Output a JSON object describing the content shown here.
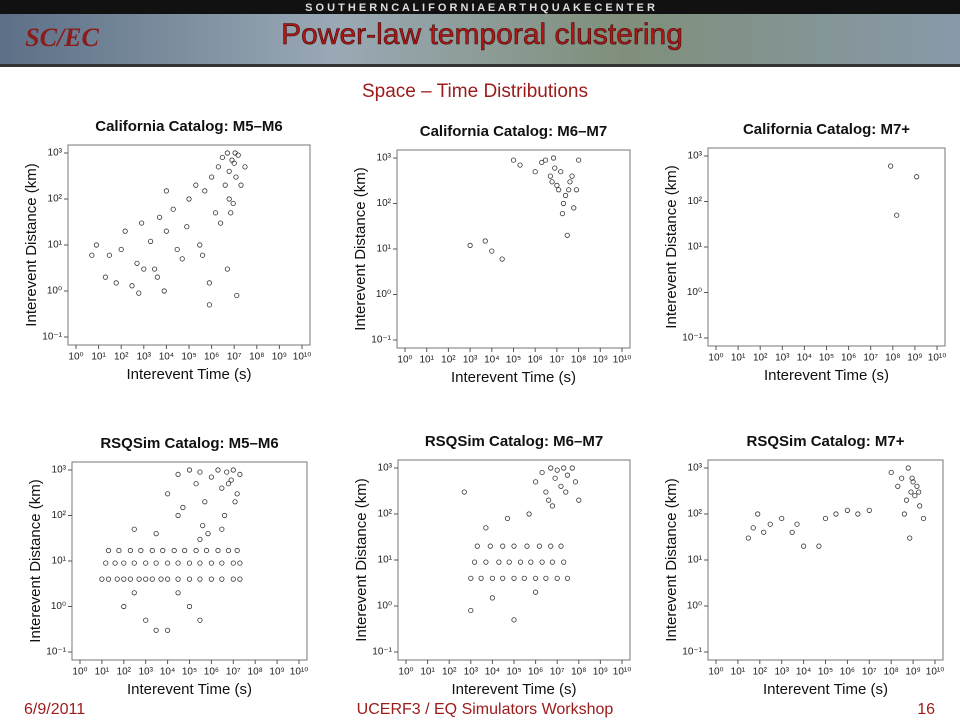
{
  "slide": {
    "banner": "S O U T H E R N   C A L I F O R N I A   E A R T H Q U A K E   C E N T E R",
    "logo": "SC/EC",
    "title": "Power-law temporal clustering",
    "subtitle": "Space – Time  Distributions",
    "footer_date": "6/9/2011",
    "footer_event": "UCERF3 / EQ Simulators Workshop",
    "page_number": "16"
  },
  "chart_data": [
    {
      "type": "scatter",
      "title": "California Catalog: M5–M6",
      "xlabel": "Interevent Time (s)",
      "ylabel": "Interevent Distance (km)",
      "xlog": true,
      "ylog": true,
      "color": "#333333",
      "xlim": [
        1,
        10000000000.0
      ],
      "ylim": [
        0.1,
        1000
      ],
      "xticks": [
        {
          "value": 1,
          "label": "10⁰"
        },
        {
          "value": 10,
          "label": "10¹"
        },
        {
          "value": 100,
          "label": "10²"
        },
        {
          "value": 1000,
          "label": "10³"
        },
        {
          "value": 10000.0,
          "label": "10⁴"
        },
        {
          "value": 100000.0,
          "label": "10⁵"
        },
        {
          "value": 1000000.0,
          "label": "10⁶"
        },
        {
          "value": 10000000.0,
          "label": "10⁷"
        },
        {
          "value": 100000000.0,
          "label": "10⁸"
        },
        {
          "value": 1000000000.0,
          "label": "10⁹"
        },
        {
          "value": 10000000000.0,
          "label": "10¹⁰"
        }
      ],
      "yticks": [
        {
          "value": 0.1,
          "label": "10⁻¹"
        },
        {
          "value": 1,
          "label": "10⁰"
        },
        {
          "value": 10,
          "label": "10¹"
        },
        {
          "value": 100,
          "label": "10²"
        },
        {
          "value": 1000,
          "label": "10³"
        }
      ],
      "x": [
        5,
        8,
        20,
        30,
        60,
        100,
        150,
        300,
        500,
        800,
        1000,
        2000,
        3000,
        5000,
        8000,
        10000.0,
        20000.0,
        30000.0,
        50000.0,
        80000.0,
        100000.0,
        200000.0,
        300000.0,
        500000.0,
        800000.0,
        1000000.0,
        1500000.0,
        2000000.0,
        3000000.0,
        4000000.0,
        5000000.0,
        6000000.0,
        8000000.0,
        10000000.0,
        12000000.0,
        15000000.0,
        20000000.0,
        30000000.0,
        5000000.0,
        7000000.0,
        9000000.0,
        11000000.0,
        2500000.0,
        400000.0,
        10000.0,
        600,
        4000,
        6000000.0,
        13000000.0,
        800000.0
      ],
      "values": [
        6,
        10,
        2,
        6,
        1.5,
        8,
        20,
        1.3,
        4,
        30,
        3,
        12,
        3,
        40,
        1,
        20,
        60,
        8,
        5,
        25,
        100,
        200,
        10,
        150,
        0.5,
        300,
        50,
        500,
        800,
        200,
        1000,
        400,
        700,
        600,
        300,
        900,
        200,
        500,
        3,
        50,
        80,
        1000,
        30,
        6,
        150,
        0.9,
        2,
        100,
        0.8,
        1.5
      ]
    },
    {
      "type": "scatter",
      "title": "California Catalog: M6–M7",
      "xlabel": "Interevent Time (s)",
      "ylabel": "Interevent Distance (km)",
      "xlog": true,
      "ylog": true,
      "color": "#333333",
      "xlim": [
        1,
        10000000000.0
      ],
      "ylim": [
        0.1,
        1000
      ],
      "xticks": [
        {
          "value": 1,
          "label": "10⁰"
        },
        {
          "value": 10,
          "label": "10¹"
        },
        {
          "value": 100,
          "label": "10²"
        },
        {
          "value": 1000,
          "label": "10³"
        },
        {
          "value": 10000.0,
          "label": "10⁴"
        },
        {
          "value": 100000.0,
          "label": "10⁵"
        },
        {
          "value": 1000000.0,
          "label": "10⁶"
        },
        {
          "value": 10000000.0,
          "label": "10⁷"
        },
        {
          "value": 100000000.0,
          "label": "10⁸"
        },
        {
          "value": 1000000000.0,
          "label": "10⁹"
        },
        {
          "value": 10000000000.0,
          "label": "10¹⁰"
        }
      ],
      "yticks": [
        {
          "value": 0.1,
          "label": "10⁻¹"
        },
        {
          "value": 1,
          "label": "10⁰"
        },
        {
          "value": 10,
          "label": "10¹"
        },
        {
          "value": 100,
          "label": "10²"
        },
        {
          "value": 1000,
          "label": "10³"
        }
      ],
      "x": [
        1000,
        5000,
        10000.0,
        30000.0,
        100000.0,
        200000.0,
        1000000.0,
        2000000.0,
        3000000.0,
        5000000.0,
        6000000.0,
        8000000.0,
        10000000.0,
        12000000.0,
        15000000.0,
        20000000.0,
        25000000.0,
        30000000.0,
        40000000.0,
        50000000.0,
        60000000.0,
        80000000.0,
        100000000.0,
        7000000.0,
        18000000.0,
        35000000.0
      ],
      "values": [
        12,
        15,
        9,
        6,
        900,
        700,
        500,
        800,
        900,
        400,
        300,
        600,
        250,
        200,
        500,
        100,
        150,
        20,
        300,
        400,
        80,
        200,
        900,
        1000,
        60,
        200
      ]
    },
    {
      "type": "scatter",
      "title": "California Catalog: M7+",
      "xlabel": "Interevent Time (s)",
      "ylabel": "Interevent Distance (km)",
      "xlog": true,
      "ylog": true,
      "color": "#333333",
      "xlim": [
        1,
        10000000000.0
      ],
      "ylim": [
        0.1,
        1000
      ],
      "xticks": [
        {
          "value": 1,
          "label": "10⁰"
        },
        {
          "value": 10,
          "label": "10¹"
        },
        {
          "value": 100,
          "label": "10²"
        },
        {
          "value": 1000,
          "label": "10³"
        },
        {
          "value": 10000.0,
          "label": "10⁴"
        },
        {
          "value": 100000.0,
          "label": "10⁵"
        },
        {
          "value": 1000000.0,
          "label": "10⁶"
        },
        {
          "value": 10000000.0,
          "label": "10⁷"
        },
        {
          "value": 100000000.0,
          "label": "10⁸"
        },
        {
          "value": 1000000000.0,
          "label": "10⁹"
        },
        {
          "value": 10000000000.0,
          "label": "10¹⁰"
        }
      ],
      "yticks": [
        {
          "value": 0.1,
          "label": "10⁻¹"
        },
        {
          "value": 1,
          "label": "10⁰"
        },
        {
          "value": 10,
          "label": "10¹"
        },
        {
          "value": 100,
          "label": "10²"
        },
        {
          "value": 1000,
          "label": "10³"
        }
      ],
      "x": [
        80000000.0,
        150000000.0,
        1200000000.0
      ],
      "values": [
        600,
        50,
        350
      ]
    },
    {
      "type": "scatter",
      "title": "RSQSim Catalog: M5–M6",
      "xlabel": "Interevent Time (s)",
      "ylabel": "Interevent Distance (km)",
      "xlog": true,
      "ylog": true,
      "color": "#333333",
      "xlim": [
        1,
        10000000000.0
      ],
      "ylim": [
        0.1,
        1000
      ],
      "xticks": [
        {
          "value": 1,
          "label": "10⁰"
        },
        {
          "value": 10,
          "label": "10¹"
        },
        {
          "value": 100,
          "label": "10²"
        },
        {
          "value": 1000,
          "label": "10³"
        },
        {
          "value": 10000.0,
          "label": "10⁴"
        },
        {
          "value": 100000.0,
          "label": "10⁵"
        },
        {
          "value": 1000000.0,
          "label": "10⁶"
        },
        {
          "value": 10000000.0,
          "label": "10⁷"
        },
        {
          "value": 100000000.0,
          "label": "10⁸"
        },
        {
          "value": 1000000000.0,
          "label": "10⁹"
        },
        {
          "value": 10000000000.0,
          "label": "10¹⁰"
        }
      ],
      "yticks": [
        {
          "value": 0.1,
          "label": "10⁻¹"
        },
        {
          "value": 1,
          "label": "10⁰"
        },
        {
          "value": 10,
          "label": "10¹"
        },
        {
          "value": 100,
          "label": "10²"
        },
        {
          "value": 1000,
          "label": "10³"
        }
      ],
      "x": [
        10,
        20,
        50,
        100,
        200,
        500,
        1000,
        2000,
        5000,
        10000.0,
        30000.0,
        100000.0,
        300000.0,
        1000000.0,
        3000000.0,
        10000000.0,
        20000000.0,
        15,
        40,
        100,
        300,
        1000,
        3000,
        10000.0,
        30000.0,
        100000.0,
        300000.0,
        1000000.0,
        3000000.0,
        10000000.0,
        20000000.0,
        20,
        60,
        200,
        600,
        2000,
        6000,
        20000.0,
        60000.0,
        200000.0,
        600000.0,
        2000000.0,
        6000000.0,
        15000000.0,
        10000.0,
        30000.0,
        50000.0,
        100000.0,
        200000.0,
        300000.0,
        500000.0,
        1000000.0,
        2000000.0,
        3000000.0,
        5000000.0,
        8000000.0,
        10000000.0,
        15000000.0,
        20000000.0,
        400000.0,
        700000.0,
        4000000.0,
        6000000.0,
        12000000.0,
        100,
        1000,
        10000.0,
        100000.0,
        300,
        3000,
        30000.0,
        300000.0,
        300,
        3000,
        30000.0,
        300000.0,
        3000000.0
      ],
      "values": [
        4,
        4,
        4,
        4,
        4,
        4,
        4,
        4,
        4,
        4,
        4,
        4,
        4,
        4,
        4,
        4,
        4,
        9,
        9,
        9,
        9,
        9,
        9,
        9,
        9,
        9,
        9,
        9,
        9,
        9,
        9,
        17,
        17,
        17,
        17,
        17,
        17,
        17,
        17,
        17,
        17,
        17,
        17,
        17,
        300,
        800,
        150,
        1000,
        500,
        900,
        200,
        700,
        1000,
        400,
        900,
        600,
        1000,
        300,
        800,
        60,
        40,
        100,
        500,
        200,
        1,
        0.5,
        0.3,
        1,
        2,
        0.3,
        2,
        0.5,
        50,
        40,
        100,
        30,
        50
      ]
    },
    {
      "type": "scatter",
      "title": "RSQSim Catalog: M6–M7",
      "xlabel": "Interevent Time (s)",
      "ylabel": "Interevent Distance (km)",
      "xlog": true,
      "ylog": true,
      "color": "#333333",
      "xlim": [
        1,
        10000000000.0
      ],
      "ylim": [
        0.1,
        1000
      ],
      "xticks": [
        {
          "value": 1,
          "label": "10⁰"
        },
        {
          "value": 10,
          "label": "10¹"
        },
        {
          "value": 100,
          "label": "10²"
        },
        {
          "value": 1000,
          "label": "10³"
        },
        {
          "value": 10000.0,
          "label": "10⁴"
        },
        {
          "value": 100000.0,
          "label": "10⁵"
        },
        {
          "value": 1000000.0,
          "label": "10⁶"
        },
        {
          "value": 10000000.0,
          "label": "10⁷"
        },
        {
          "value": 100000000.0,
          "label": "10⁸"
        },
        {
          "value": 1000000000.0,
          "label": "10⁹"
        },
        {
          "value": 10000000000.0,
          "label": "10¹⁰"
        }
      ],
      "yticks": [
        {
          "value": 0.1,
          "label": "10⁻¹"
        },
        {
          "value": 1,
          "label": "10⁰"
        },
        {
          "value": 10,
          "label": "10¹"
        },
        {
          "value": 100,
          "label": "10²"
        },
        {
          "value": 1000,
          "label": "10³"
        }
      ],
      "x": [
        1000,
        3000,
        10000.0,
        30000.0,
        100000.0,
        300000.0,
        1000000.0,
        3000000.0,
        10000000.0,
        30000000.0,
        1500,
        5000,
        20000.0,
        60000.0,
        200000.0,
        600000.0,
        2000000.0,
        6000000.0,
        20000000.0,
        2000,
        8000,
        30000.0,
        100000.0,
        400000.0,
        1500000.0,
        5000000.0,
        15000000.0,
        1000000.0,
        2000000.0,
        3000000.0,
        5000000.0,
        8000000.0,
        10000000.0,
        15000000.0,
        20000000.0,
        30000000.0,
        50000000.0,
        70000000.0,
        100000000.0,
        4000000.0,
        6000000.0,
        25000000.0,
        1000,
        10000.0,
        100000.0,
        1000000.0,
        500,
        5000,
        50000.0,
        500000.0
      ],
      "values": [
        4,
        4,
        4,
        4,
        4,
        4,
        4,
        4,
        4,
        4,
        9,
        9,
        9,
        9,
        9,
        9,
        9,
        9,
        9,
        20,
        20,
        20,
        20,
        20,
        20,
        20,
        20,
        500,
        800,
        300,
        1000,
        600,
        900,
        400,
        1000,
        700,
        1000,
        500,
        200,
        200,
        150,
        300,
        0.8,
        1.5,
        0.5,
        2,
        300,
        50,
        80,
        100
      ]
    },
    {
      "type": "scatter",
      "title": "RSQSim Catalog: M7+",
      "xlabel": "Interevent Time (s)",
      "ylabel": "Interevent Distance (km)",
      "xlog": true,
      "ylog": true,
      "color": "#333333",
      "xlim": [
        1,
        10000000000.0
      ],
      "ylim": [
        0.1,
        1000
      ],
      "xticks": [
        {
          "value": 1,
          "label": "10⁰"
        },
        {
          "value": 10,
          "label": "10¹"
        },
        {
          "value": 100,
          "label": "10²"
        },
        {
          "value": 1000,
          "label": "10³"
        },
        {
          "value": 10000.0,
          "label": "10⁴"
        },
        {
          "value": 100000.0,
          "label": "10⁵"
        },
        {
          "value": 1000000.0,
          "label": "10⁶"
        },
        {
          "value": 10000000.0,
          "label": "10⁷"
        },
        {
          "value": 100000000.0,
          "label": "10⁸"
        },
        {
          "value": 1000000000.0,
          "label": "10⁹"
        },
        {
          "value": 10000000000.0,
          "label": "10¹⁰"
        }
      ],
      "yticks": [
        {
          "value": 0.1,
          "label": "10⁻¹"
        },
        {
          "value": 1,
          "label": "10⁰"
        },
        {
          "value": 10,
          "label": "10¹"
        },
        {
          "value": 100,
          "label": "10²"
        },
        {
          "value": 1000,
          "label": "10³"
        }
      ],
      "x": [
        30,
        50,
        80,
        150,
        300,
        1000,
        3000,
        5000,
        10000.0,
        50000.0,
        100000.0,
        300000.0,
        1000000.0,
        3000000.0,
        10000000.0,
        100000000.0,
        200000000.0,
        300000000.0,
        500000000.0,
        600000000.0,
        800000000.0,
        1000000000.0,
        1200000000.0,
        1500000000.0,
        2000000000.0,
        3000000000.0,
        700000000.0,
        900000000.0,
        400000000.0,
        1800000000.0
      ],
      "values": [
        30,
        50,
        100,
        40,
        60,
        80,
        40,
        60,
        20,
        20,
        80,
        100,
        120,
        100,
        120,
        800,
        400,
        600,
        200,
        1000,
        300,
        500,
        250,
        400,
        150,
        80,
        30,
        600,
        100,
        300
      ]
    }
  ]
}
